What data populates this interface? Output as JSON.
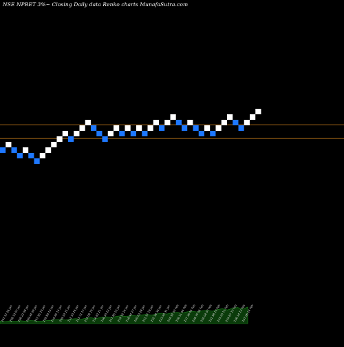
{
  "header": {
    "text": "NSE NPBET 3%~  Closing Daily data  Renko  charts MunafaSutra.com"
  },
  "colors": {
    "background": "#000000",
    "up_brick": "#ffffff",
    "down_brick": "#1e78ff",
    "reference_line": "#b8741a",
    "volume_fill": "#0a3b0a",
    "volume_edge": "#1e8a1e"
  },
  "chart_data": {
    "type": "renko",
    "bricks": [
      {
        "level": 0,
        "dir": "down"
      },
      {
        "level": 1,
        "dir": "up"
      },
      {
        "level": 0,
        "dir": "down"
      },
      {
        "level": -1,
        "dir": "down"
      },
      {
        "level": 0,
        "dir": "up"
      },
      {
        "level": -1,
        "dir": "down"
      },
      {
        "level": -2,
        "dir": "down"
      },
      {
        "level": -1,
        "dir": "up"
      },
      {
        "level": 0,
        "dir": "up"
      },
      {
        "level": 1,
        "dir": "up"
      },
      {
        "level": 2,
        "dir": "up"
      },
      {
        "level": 3,
        "dir": "up"
      },
      {
        "level": 2,
        "dir": "down"
      },
      {
        "level": 3,
        "dir": "up"
      },
      {
        "level": 4,
        "dir": "up"
      },
      {
        "level": 5,
        "dir": "up"
      },
      {
        "level": 4,
        "dir": "down"
      },
      {
        "level": 3,
        "dir": "down"
      },
      {
        "level": 2,
        "dir": "down"
      },
      {
        "level": 3,
        "dir": "up"
      },
      {
        "level": 4,
        "dir": "up"
      },
      {
        "level": 3,
        "dir": "down"
      },
      {
        "level": 4,
        "dir": "up"
      },
      {
        "level": 3,
        "dir": "down"
      },
      {
        "level": 4,
        "dir": "up"
      },
      {
        "level": 3,
        "dir": "down"
      },
      {
        "level": 4,
        "dir": "up"
      },
      {
        "level": 5,
        "dir": "up"
      },
      {
        "level": 4,
        "dir": "down"
      },
      {
        "level": 5,
        "dir": "up"
      },
      {
        "level": 6,
        "dir": "up"
      },
      {
        "level": 5,
        "dir": "down"
      },
      {
        "level": 4,
        "dir": "down"
      },
      {
        "level": 5,
        "dir": "up"
      },
      {
        "level": 4,
        "dir": "down"
      },
      {
        "level": 3,
        "dir": "down"
      },
      {
        "level": 4,
        "dir": "up"
      },
      {
        "level": 3,
        "dir": "down"
      },
      {
        "level": 4,
        "dir": "up"
      },
      {
        "level": 5,
        "dir": "up"
      },
      {
        "level": 6,
        "dir": "up"
      },
      {
        "level": 5,
        "dir": "down"
      },
      {
        "level": 4,
        "dir": "down"
      },
      {
        "level": 5,
        "dir": "up"
      },
      {
        "level": 6,
        "dir": "up"
      },
      {
        "level": 7,
        "dir": "up"
      }
    ],
    "reference_lines": [
      4.6,
      2.1
    ],
    "volume_profile": [
      0.12,
      0.1,
      0.13,
      0.11,
      0.14,
      0.12,
      0.15,
      0.13,
      0.11,
      0.14,
      0.16,
      0.18,
      0.2,
      0.17,
      0.22,
      0.24,
      0.21,
      0.26,
      0.28,
      0.25,
      0.3,
      0.33,
      0.29,
      0.35,
      0.38,
      0.34,
      0.4,
      0.37,
      0.42,
      0.45,
      0.41,
      0.47,
      0.5,
      0.46,
      0.52,
      0.55,
      0.51,
      0.57,
      0.6,
      0.56,
      0.62,
      0.65,
      0.6,
      0.68,
      0.72,
      0.66,
      0.74,
      0.78,
      0.7,
      0.8
    ],
    "x_labels": [
      "207.57 06 Jan",
      "208.10 07 Jan",
      "208.22 08 Jan",
      "209.44 09 Jan",
      "207.95 10 Jan",
      "209.80 13 Jan",
      "210.45 14 Jan",
      "209.33 15 Jan",
      "212.10 16 Jan",
      "213.72 17 Jan",
      "215.08 20 Jan",
      "214.62 21 Jan",
      "216.30 22 Jan",
      "217.85 23 Jan",
      "219.16 24 Jan",
      "218.44 27 Jan",
      "220.03 28 Jan",
      "221.57 29 Jan",
      "222.18 30 Jan",
      "223.40 31 Jan",
      "224.92 03 Feb",
      "226.11 04 Feb",
      "227.36 05 Feb",
      "228.75 06 Feb",
      "230.04 07 Feb",
      "231.58 10 Feb",
      "233.20 11 Feb",
      "234.67 12 Feb",
      "236.14 13 Feb",
      "237.06 14 Feb"
    ]
  }
}
